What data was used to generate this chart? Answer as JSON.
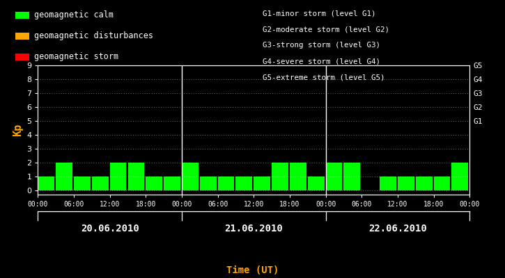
{
  "background_color": "#000000",
  "plot_bg_color": "#000000",
  "bar_color_calm": "#00FF00",
  "bar_color_disturbance": "#FFA500",
  "bar_color_storm": "#FF0000",
  "xlabel": "Time (UT)",
  "ylabel": "Kp",
  "ylabel_color": "#FFA500",
  "xlabel_color": "#FFA500",
  "text_color": "#FFFFFF",
  "tick_color": "#FFFFFF",
  "grid_color": "#FFFFFF",
  "ylim": [
    0,
    9
  ],
  "yticks": [
    0,
    1,
    2,
    3,
    4,
    5,
    6,
    7,
    8,
    9
  ],
  "kp_values": [
    1,
    2,
    1,
    1,
    2,
    2,
    1,
    1,
    2,
    1,
    1,
    1,
    1,
    2,
    2,
    1,
    2,
    2,
    0,
    1,
    1,
    1,
    1,
    2
  ],
  "days": [
    "20.06.2010",
    "21.06.2010",
    "22.06.2010"
  ],
  "right_labels": [
    [
      "G5",
      9
    ],
    [
      "G4",
      8
    ],
    [
      "G3",
      7
    ],
    [
      "G2",
      6
    ],
    [
      "G1",
      5
    ]
  ],
  "legend_items": [
    {
      "color": "#00FF00",
      "label": "geomagnetic calm"
    },
    {
      "color": "#FFA500",
      "label": "geomagnetic disturbances"
    },
    {
      "color": "#FF0000",
      "label": "geomagnetic storm"
    }
  ],
  "storm_info": [
    "G1-minor storm (level G1)",
    "G2-moderate storm (level G2)",
    "G3-strong storm (level G3)",
    "G4-severe storm (level G4)",
    "G5-extreme storm (level G5)"
  ],
  "calm_threshold": 4,
  "disturbance_threshold": 5
}
